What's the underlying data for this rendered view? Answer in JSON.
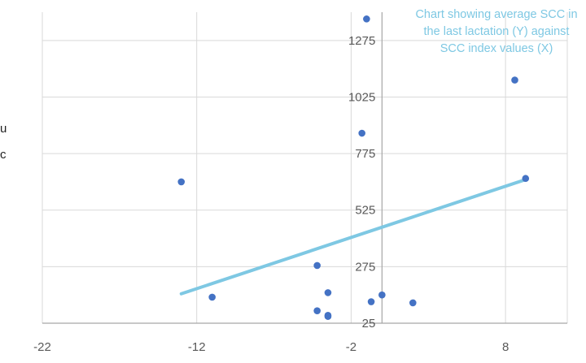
{
  "chart_data": {
    "type": "scatter",
    "title": "Chart showing average SCC in the last lactation (Y) against SCC index values (X)",
    "xlabel": "",
    "ylabel": "",
    "xlim": [
      -22,
      12
    ],
    "ylim": [
      25,
      1400
    ],
    "x_ticks": [
      -22,
      -12,
      -2,
      8
    ],
    "y_ticks": [
      25,
      275,
      525,
      775,
      1025,
      1275
    ],
    "series": [
      {
        "points": [
          [
            -13.0,
            650
          ],
          [
            -11.0,
            140
          ],
          [
            -4.2,
            280
          ],
          [
            -3.5,
            160
          ],
          [
            -3.5,
            55
          ],
          [
            -3.5,
            60
          ],
          [
            -4.2,
            80
          ],
          [
            -1.3,
            865
          ],
          [
            -1.0,
            1370
          ],
          [
            -0.7,
            120
          ],
          [
            0.0,
            150
          ],
          [
            2.0,
            115
          ],
          [
            9.3,
            665
          ],
          [
            8.6,
            1100
          ]
        ]
      }
    ],
    "trendline": {
      "type": "linear",
      "x": [
        -13.0,
        9.3
      ],
      "y": [
        155,
        660
      ]
    },
    "grid": true,
    "colors": {
      "points": "#4472c4",
      "trendline": "#7ec8e3",
      "grid": "#d9d9d9",
      "axis": "#a6a6a6"
    }
  },
  "stray_text": {
    "fragment_1": "u",
    "fragment_2": "c"
  }
}
